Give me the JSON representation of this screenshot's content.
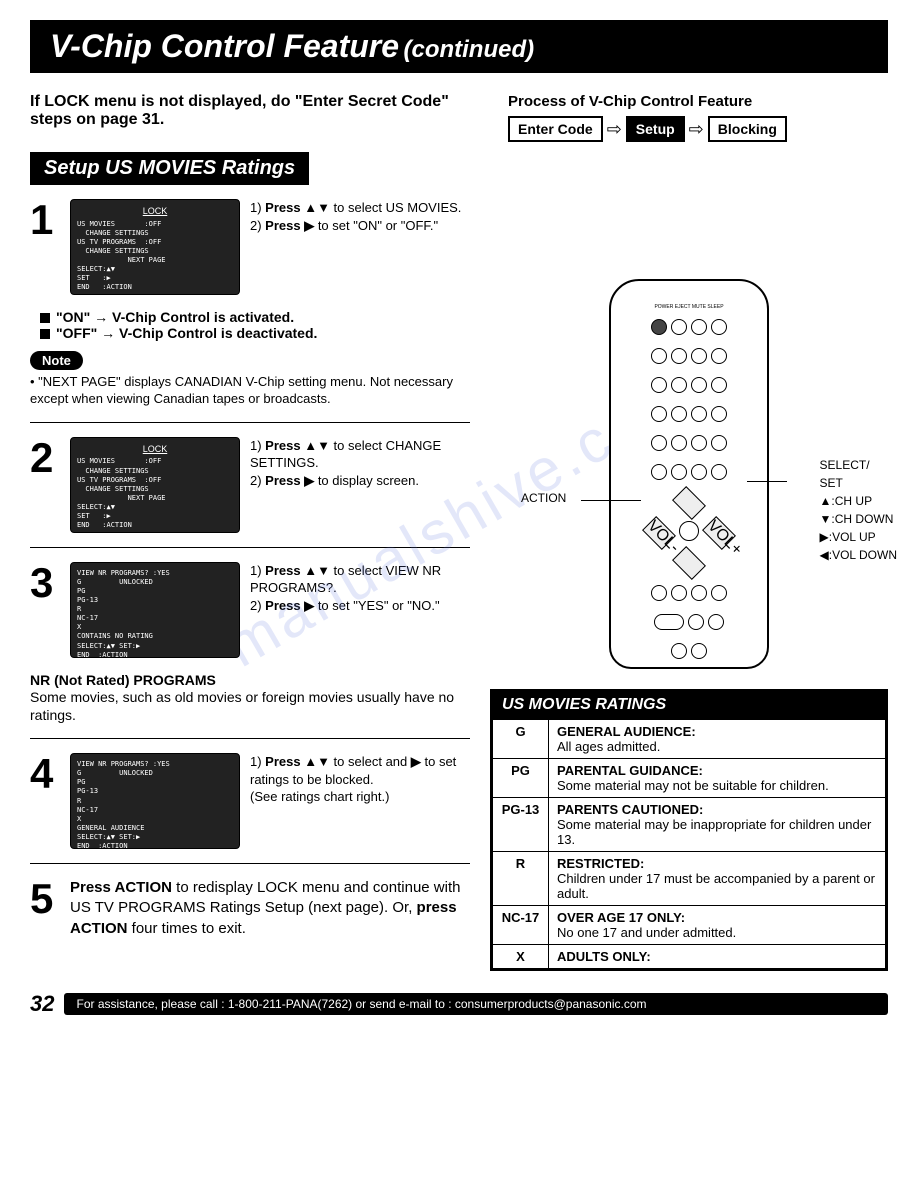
{
  "header": {
    "title": "V-Chip Control Feature",
    "sub": "(continued)"
  },
  "top": {
    "lock_note": "If LOCK menu is not displayed, do \"Enter Secret Code\" steps on page 31.",
    "process_title": "Process of V-Chip Control Feature",
    "pboxes": [
      "Enter Code",
      "Setup",
      "Blocking"
    ]
  },
  "section_bar": "Setup US MOVIES Ratings",
  "steps": [
    {
      "num": "1",
      "screen": {
        "title": "LOCK",
        "lines": [
          "US MOVIES       :OFF",
          "  CHANGE SETTINGS",
          "US TV PROGRAMS  :OFF",
          "  CHANGE SETTINGS",
          "            NEXT PAGE",
          "SELECT:▲▼",
          "SET   :▶",
          "END   :ACTION"
        ]
      },
      "text": "1) <b>Press ▲▼</b> to select US MOVIES.<br>2) <b>Press ▶</b> to set \"ON\" or \"OFF.\""
    },
    {
      "num": "2",
      "screen": {
        "title": "LOCK",
        "lines": [
          "US MOVIES       :OFF",
          "  CHANGE SETTINGS",
          "US TV PROGRAMS  :OFF",
          "  CHANGE SETTINGS",
          "            NEXT PAGE",
          "SELECT:▲▼",
          "SET   :▶",
          "END   :ACTION"
        ]
      },
      "text": "1) <b>Press ▲▼</b> to select CHANGE SETTINGS.<br>2) <b>Press ▶</b> to display screen."
    },
    {
      "num": "3",
      "screen": {
        "title": "",
        "lines": [
          "VIEW NR PROGRAMS? :YES",
          "G         UNLOCKED",
          "PG",
          "PG-13",
          "R",
          "NC-17",
          "X",
          "CONTAINS NO RATING",
          "SELECT:▲▼ SET:▶",
          "END  :ACTION"
        ]
      },
      "text": "1) <b>Press ▲▼</b> to select VIEW NR PROGRAMS?.<br>2) <b>Press ▶</b> to set \"YES\" or \"NO.\""
    },
    {
      "num": "4",
      "screen": {
        "title": "",
        "lines": [
          "VIEW NR PROGRAMS? :YES",
          "G         UNLOCKED",
          "PG",
          "PG-13",
          "R",
          "NC-17",
          "X",
          "GENERAL AUDIENCE",
          "SELECT:▲▼ SET:▶",
          "END  :ACTION"
        ]
      },
      "text": "1) <b>Press ▲▼</b> to select and <b>▶</b> to set ratings to be blocked.<br>(See ratings chart right.)"
    }
  ],
  "bullets": {
    "on": "\"ON\" → V-Chip Control is activated.",
    "off": "\"OFF\" → V-Chip Control is deactivated."
  },
  "note": {
    "label": "Note",
    "text": "• \"NEXT PAGE\" displays CANADIAN V-Chip setting menu. Not necessary except when viewing Canadian tapes or broadcasts."
  },
  "nr": {
    "title": "NR (Not Rated) PROGRAMS",
    "desc": "Some movies, such as old movies or foreign movies usually have no ratings."
  },
  "step5": {
    "num": "5",
    "text": "<b>Press ACTION</b> to redisplay LOCK menu and continue with US TV PROGRAMS Ratings Setup (next page). Or, <b>press ACTION</b> four times to exit."
  },
  "remote": {
    "left_label": "ACTION",
    "right_labels": [
      "SELECT/",
      "SET",
      "▲:CH UP",
      "▼:CH DOWN",
      "▶:VOL UP",
      "◀:VOL DOWN"
    ]
  },
  "ratings": {
    "header": "US MOVIES RATINGS",
    "rows": [
      {
        "code": "G",
        "title": "GENERAL AUDIENCE:",
        "desc": "All ages admitted."
      },
      {
        "code": "PG",
        "title": "PARENTAL GUIDANCE:",
        "desc": "Some material may not be suitable for children."
      },
      {
        "code": "PG-13",
        "title": "PARENTS CAUTIONED:",
        "desc": "Some material may be inappropriate for children under 13."
      },
      {
        "code": "R",
        "title": "RESTRICTED:",
        "desc": "Children under 17 must be accompanied by a parent or adult."
      },
      {
        "code": "NC-17",
        "title": "OVER AGE 17 ONLY:",
        "desc": "No one 17 and under admitted."
      },
      {
        "code": "X",
        "title": "ADULTS ONLY:",
        "desc": ""
      }
    ]
  },
  "footer": {
    "page": "32",
    "bar": "For assistance, please call : 1-800-211-PANA(7262) or send e-mail to : consumerproducts@panasonic.com"
  },
  "watermark": "manualshive.com"
}
